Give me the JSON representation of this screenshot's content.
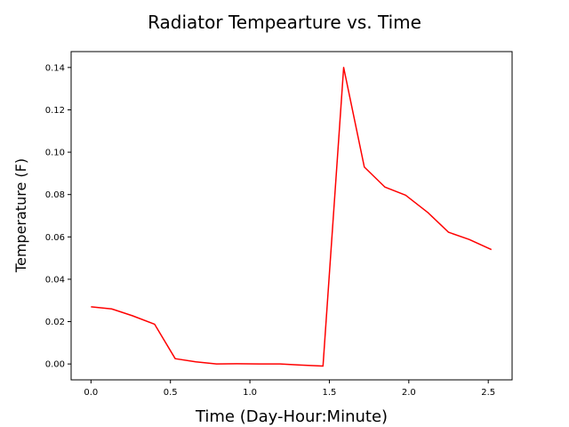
{
  "chart_data": {
    "type": "line",
    "title": "Radiator Tempearture vs. Time",
    "xlabel": "Time (Day-Hour:Minute)",
    "ylabel": "Temperature (F)",
    "xlim": [
      -0.125,
      2.65
    ],
    "ylim": [
      -0.0075,
      0.1475
    ],
    "xticks": [
      0.0,
      0.5,
      1.0,
      1.5,
      2.0,
      2.5
    ],
    "xtick_labels": [
      "0.0",
      "0.5",
      "1.0",
      "1.5",
      "2.0",
      "2.5"
    ],
    "yticks": [
      0.0,
      0.02,
      0.04,
      0.06,
      0.08,
      0.1,
      0.12,
      0.14
    ],
    "ytick_labels": [
      "0.00",
      "0.02",
      "0.04",
      "0.06",
      "0.08",
      "0.10",
      "0.12",
      "0.14"
    ],
    "grid": false,
    "series": [
      {
        "color": "#ff0000",
        "x": [
          0.0,
          0.13,
          0.26,
          0.4,
          0.53,
          0.66,
          0.79,
          0.92,
          1.06,
          1.19,
          1.32,
          1.46,
          1.59,
          1.72,
          1.85,
          1.98,
          2.12,
          2.25,
          2.38,
          2.52
        ],
        "y": [
          0.027,
          0.026,
          0.0228,
          0.0188,
          0.0025,
          0.001,
          0.0,
          0.0001,
          0.0,
          0.0,
          -0.0005,
          -0.001,
          0.14,
          0.093,
          0.0835,
          0.0797,
          0.0715,
          0.0622,
          0.0588,
          0.054
        ]
      }
    ]
  }
}
